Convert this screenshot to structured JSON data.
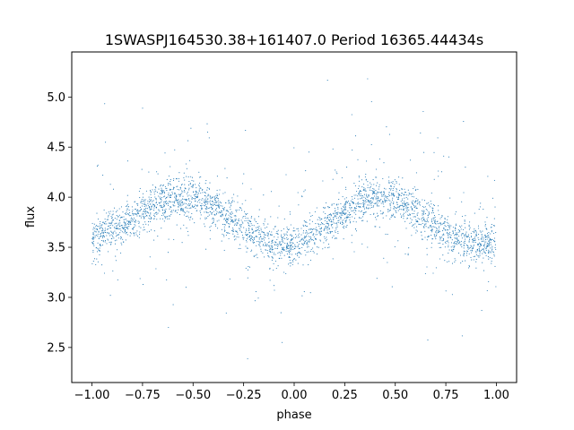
{
  "chart_data": {
    "type": "scatter",
    "title": "1SWASPJ164530.38+161407.0 Period 16365.44434s",
    "xlabel": "phase",
    "ylabel": "flux",
    "xlim": [
      -1.1,
      1.1
    ],
    "ylim": [
      2.15,
      5.45
    ],
    "xticks": [
      -1.0,
      -0.75,
      -0.5,
      -0.25,
      0.0,
      0.25,
      0.5,
      0.75,
      1.0
    ],
    "xtick_labels": [
      "−1.00",
      "−0.75",
      "−0.50",
      "−0.25",
      "0.00",
      "0.25",
      "0.50",
      "0.75",
      "1.00"
    ],
    "yticks": [
      2.5,
      3.0,
      3.5,
      4.0,
      4.5,
      5.0
    ],
    "ytick_labels": [
      "2.5",
      "3.0",
      "3.5",
      "4.0",
      "4.5",
      "5.0"
    ],
    "grid": false,
    "marker_color": "#1f77b4",
    "series_trend": {
      "x": [
        -1.0,
        -0.9,
        -0.8,
        -0.7,
        -0.6,
        -0.5,
        -0.4,
        -0.3,
        -0.2,
        -0.1,
        0.0,
        0.1,
        0.2,
        0.3,
        0.4,
        0.5,
        0.6,
        0.7,
        0.8,
        0.9,
        1.0
      ],
      "y": [
        3.58,
        3.67,
        3.78,
        3.91,
        3.99,
        4.0,
        3.9,
        3.78,
        3.62,
        3.53,
        3.52,
        3.65,
        3.78,
        3.93,
        4.0,
        3.98,
        3.86,
        3.7,
        3.58,
        3.53,
        3.55
      ]
    }
  }
}
